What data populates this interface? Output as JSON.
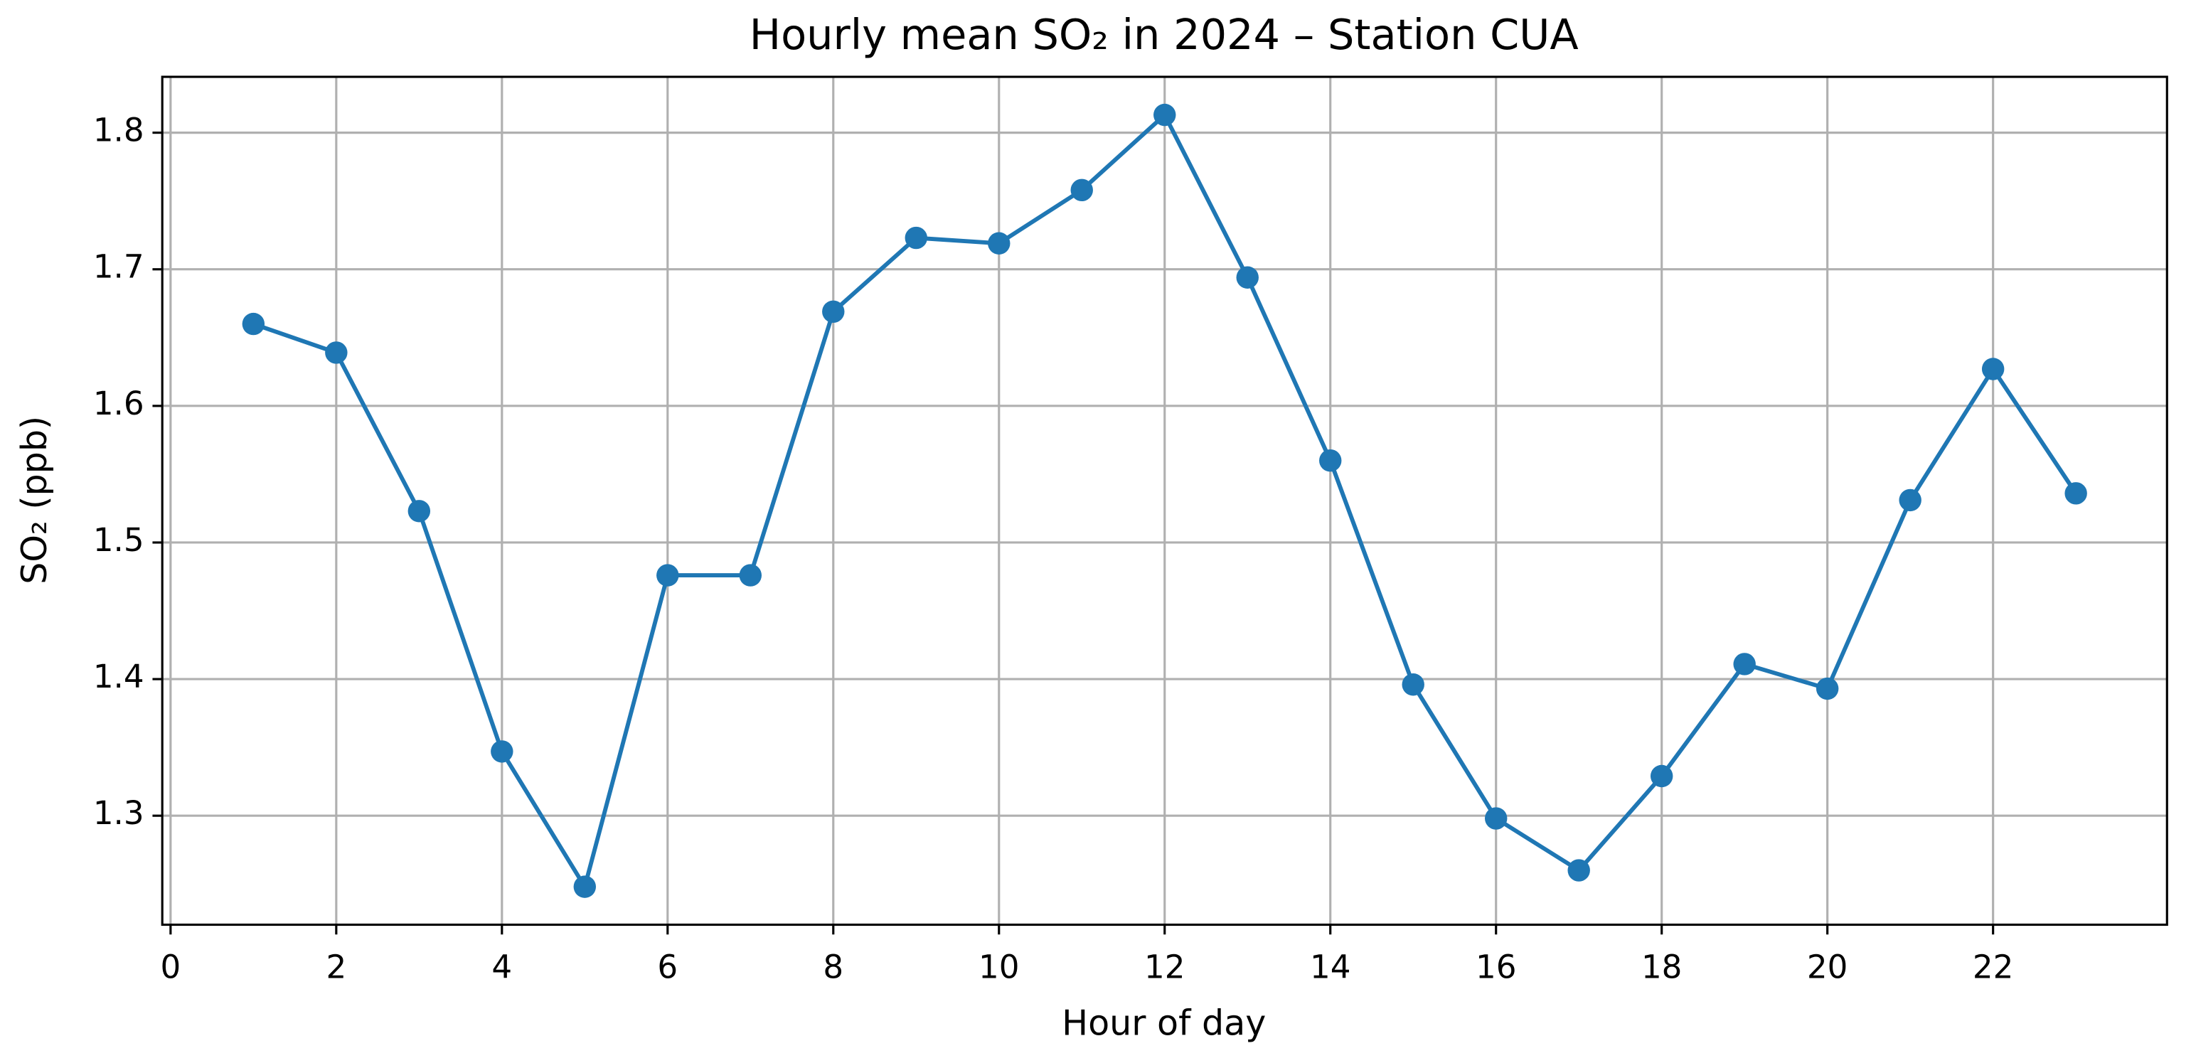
{
  "chart_data": {
    "type": "line",
    "title": "Hourly mean SO₂ in 2024 – Station CUA",
    "x_label": "Hour of day",
    "y_label": "SO₂ (ppb)",
    "x": [
      1,
      2,
      3,
      4,
      5,
      6,
      7,
      8,
      9,
      10,
      11,
      12,
      13,
      14,
      15,
      16,
      17,
      18,
      19,
      20,
      21,
      22,
      23
    ],
    "series": [
      {
        "name": "SO₂",
        "color": "#1f77b4",
        "values": [
          1.66,
          1.639,
          1.523,
          1.347,
          1.248,
          1.476,
          1.476,
          1.669,
          1.723,
          1.719,
          1.758,
          1.813,
          1.694,
          1.56,
          1.396,
          1.298,
          1.26,
          1.329,
          1.411,
          1.393,
          1.531,
          1.627,
          1.536
        ]
      }
    ],
    "xlim": [
      -0.1,
      24.1
    ],
    "xticks": [
      0,
      2,
      4,
      6,
      8,
      10,
      12,
      14,
      16,
      18,
      20,
      22
    ],
    "ylim": [
      1.2202,
      1.8409
    ],
    "yticks": [
      1.3,
      1.4,
      1.5,
      1.6,
      1.7,
      1.8
    ],
    "grid": true
  }
}
